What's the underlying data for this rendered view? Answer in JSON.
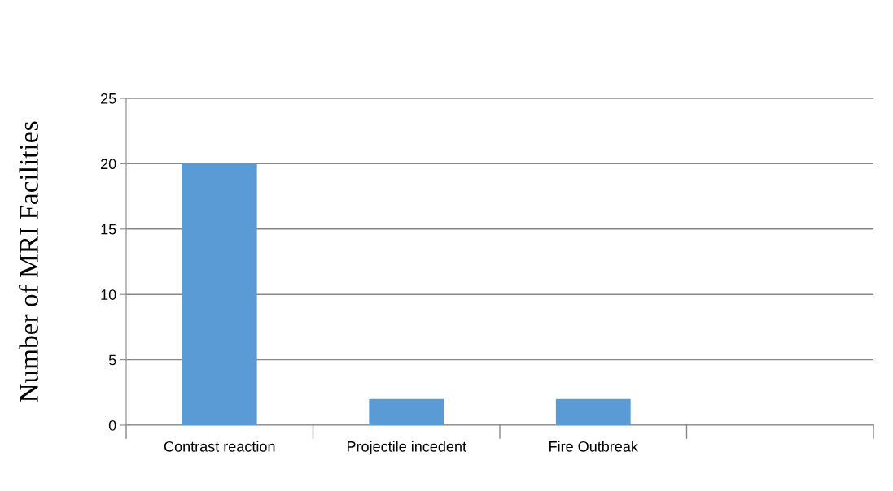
{
  "chart_data": {
    "type": "bar",
    "ylabel": "Number of MRI Facilities",
    "categories": [
      "Contrast reaction",
      "Projectile incedent",
      "Fire Outbreak",
      null
    ],
    "values": [
      20,
      2,
      2,
      null
    ],
    "color": "#5b9bd5",
    "ylim": [
      0,
      25
    ],
    "yticks": [
      0,
      5,
      10,
      15,
      20,
      25
    ],
    "grid": "y",
    "legend": false
  }
}
